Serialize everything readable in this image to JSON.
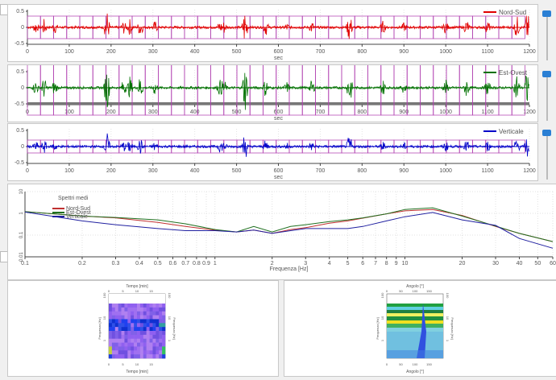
{
  "signals": [
    {
      "legend": "Nord-Sud",
      "color": "#e00000",
      "yticks": [
        "0.5",
        "0",
        "-0.5"
      ],
      "xlabel": "sec",
      "box": 0.35
    },
    {
      "legend": "Est-Ovest",
      "color": "#007000",
      "yticks": [
        "0.5",
        "0",
        "-0.5"
      ],
      "xlabel": "sec",
      "box": 0.85
    },
    {
      "legend": "Verticale",
      "color": "#0000c8",
      "yticks": [
        "0.5",
        "0",
        "-0.5"
      ],
      "xlabel": "sec",
      "box": 0.2
    }
  ],
  "signal_xticks": [
    "0",
    "100",
    "200",
    "300",
    "400",
    "500",
    "600",
    "700",
    "800",
    "900",
    "1000",
    "1100",
    "1200"
  ],
  "window_color": "#b040b0",
  "chart_data": {
    "type": "line",
    "title": "Spettri medi",
    "xlabel": "Frequenza [Hz]",
    "ylabel": "",
    "xscale": "log",
    "yscale": "log",
    "xlim": [
      0.1,
      60
    ],
    "ylim": [
      0.01,
      10
    ],
    "xticks": [
      "0.1",
      "0.2",
      "0.3",
      "0.4",
      "0.5",
      "0.6",
      "0.7",
      "0.8",
      "0.9",
      "1",
      "2",
      "3",
      "4",
      "5",
      "6",
      "7",
      "8",
      "9",
      "10",
      "20",
      "30",
      "40",
      "50",
      "60"
    ],
    "yticks": [
      "10",
      "1",
      "0.1",
      "0.01"
    ],
    "legend_position": "top-left",
    "x": [
      0.1,
      0.2,
      0.3,
      0.5,
      0.7,
      1,
      1.3,
      1.6,
      2,
      2.5,
      3,
      4,
      5,
      6,
      8,
      10,
      14,
      20,
      30,
      40,
      60
    ],
    "series": [
      {
        "name": "Nord-Sud",
        "color": "#c03030",
        "values": [
          1.2,
          0.75,
          0.62,
          0.38,
          0.25,
          0.17,
          0.14,
          0.17,
          0.12,
          0.18,
          0.22,
          0.35,
          0.45,
          0.6,
          0.95,
          1.3,
          1.5,
          0.8,
          0.25,
          0.12,
          0.05
        ]
      },
      {
        "name": "Est-Ovest",
        "color": "#207020",
        "values": [
          1.2,
          0.75,
          0.65,
          0.5,
          0.33,
          0.18,
          0.14,
          0.25,
          0.14,
          0.25,
          0.3,
          0.42,
          0.5,
          0.62,
          0.95,
          1.5,
          1.8,
          0.75,
          0.26,
          0.12,
          0.05
        ]
      },
      {
        "name": "Verticale",
        "color": "#2020a0",
        "values": [
          1.15,
          0.45,
          0.3,
          0.2,
          0.16,
          0.16,
          0.14,
          0.17,
          0.12,
          0.16,
          0.2,
          0.2,
          0.2,
          0.25,
          0.45,
          0.7,
          1.1,
          0.5,
          0.28,
          0.07,
          0.025
        ]
      }
    ]
  },
  "tf_map": {
    "top_label": "Tempo [min]",
    "bottom_label": "Tempo [min]",
    "ylabel": "Frequenza [Hz]",
    "xticks": [
      "0",
      "5",
      "10",
      "15"
    ],
    "yticks": [
      "100",
      "10",
      "1"
    ]
  },
  "dir_map": {
    "top_label": "Angolo [°]",
    "bottom_label": "Angolo [°]",
    "ylabel": "Frequenza [Hz]",
    "xticks": [
      "0",
      "50",
      "100",
      "150"
    ],
    "yticks": [
      "100",
      "10",
      "1"
    ]
  }
}
